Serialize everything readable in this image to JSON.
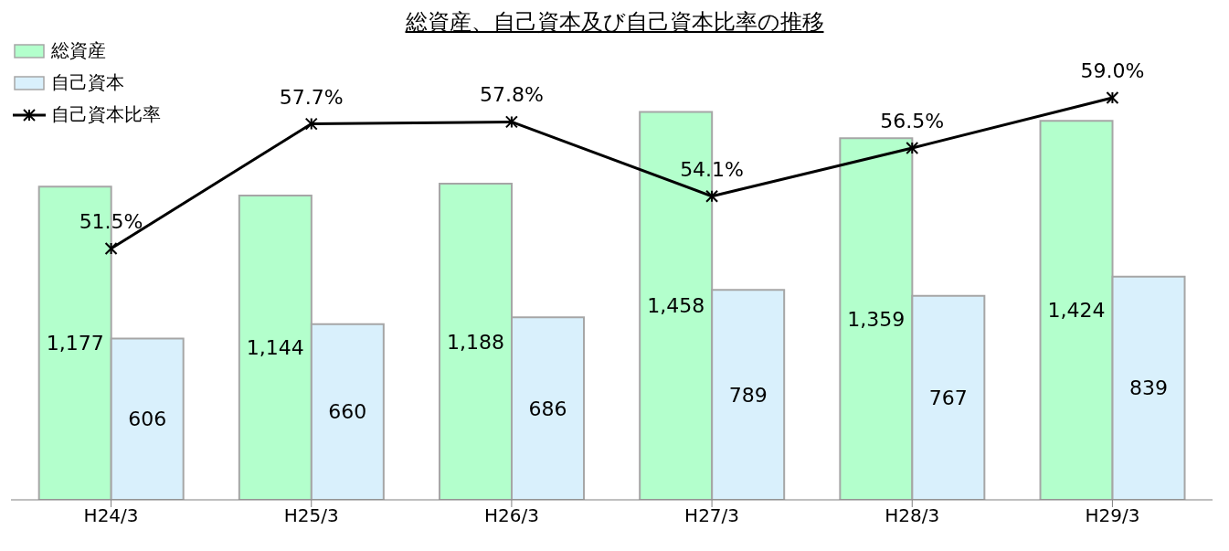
{
  "chart_data": {
    "type": "bar",
    "title": "総資産、自己資本及び自己資本比率の推移",
    "categories": [
      "H24/3",
      "H25/3",
      "H26/3",
      "H27/3",
      "H28/3",
      "H29/3"
    ],
    "ylim": [
      0,
      1700
    ],
    "y2lim": [
      39,
      61.5
    ],
    "legend": "top left",
    "series": [
      {
        "name": "総資産",
        "color": "#b3ffcc",
        "values": [
          1177,
          1144,
          1188,
          1458,
          1359,
          1424
        ],
        "value_labels": [
          "1,177",
          "1,144",
          "1,188",
          "1,458",
          "1,359",
          "1,424"
        ]
      },
      {
        "name": "自己資本",
        "color": "#d9f0fc",
        "values": [
          606,
          660,
          686,
          789,
          767,
          839
        ],
        "value_labels": [
          "606",
          "660",
          "686",
          "789",
          "767",
          "839"
        ]
      },
      {
        "name": "自己資本比率",
        "type": "line",
        "axis": "y2",
        "color": "#000000",
        "marker": "cross",
        "line_style": "solid",
        "values": [
          51.5,
          57.7,
          57.8,
          54.1,
          56.5,
          59.0
        ],
        "value_labels": [
          "51.5%",
          "57.7%",
          "57.8%",
          "54.1%",
          "56.5%",
          "59.0%"
        ]
      }
    ]
  }
}
